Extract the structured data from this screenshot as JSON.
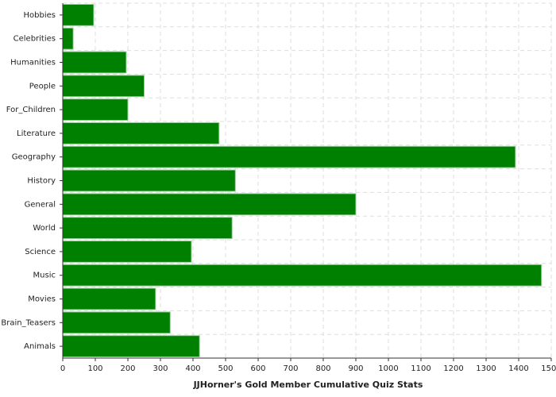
{
  "chart_data": {
    "type": "hbar",
    "x_label": "JJHorner's Gold Member Cumulative Quiz Stats",
    "categories": [
      "Hobbies",
      "Celebrities",
      "Humanities",
      "People",
      "For_Children",
      "Literature",
      "Geography",
      "History",
      "General",
      "World",
      "Science",
      "Music",
      "Movies",
      "Brain_Teasers",
      "Animals"
    ],
    "values": [
      95,
      32,
      195,
      250,
      200,
      480,
      1390,
      530,
      900,
      520,
      395,
      1470,
      285,
      330,
      420
    ],
    "color": "#008000",
    "xlim": [
      0,
      1500
    ],
    "xticks": [
      0,
      100,
      200,
      300,
      400,
      500,
      600,
      700,
      800,
      900,
      1000,
      1100,
      1200,
      1300,
      1400,
      1500
    ],
    "grid": true
  }
}
